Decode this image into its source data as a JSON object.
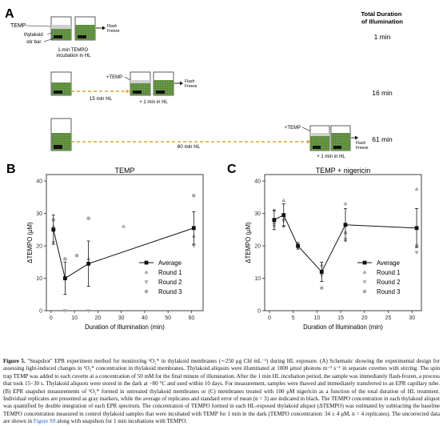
{
  "panel_a": {
    "letter": "A",
    "header_col": "Total Duration\nof Illumination",
    "labels": {
      "temp": "TEMP",
      "thylakoid": "thylakoid",
      "stir_bar": "stir bar",
      "flash_freeze": "Flash\nFreeze"
    },
    "rows": [
      {
        "duration": "1 min",
        "note": "1-min TEMPO\nincubation in HL",
        "hl_label": "",
        "add_label": "",
        "tail_label": ""
      },
      {
        "duration": "16 min",
        "note": "",
        "hl_label": "15 min HL",
        "add_label": "+TEMP",
        "tail_label": "+ 1 min in HL"
      },
      {
        "duration": "61 min",
        "note": "",
        "hl_label": "60 min HL",
        "add_label": "+TEMP",
        "tail_label": "+ 1 min in HL"
      }
    ]
  },
  "chart_data": [
    {
      "type": "scatter",
      "letter": "B",
      "title": "TEMP",
      "xlabel": "Duration of Illumination (min)",
      "ylabel": "ΔTEMPO (μM)",
      "xlim": [
        -2,
        65
      ],
      "ylim": [
        0,
        42
      ],
      "xticks": [
        0,
        10,
        20,
        30,
        40,
        50,
        60
      ],
      "yticks": [
        0,
        10,
        20,
        30,
        40
      ],
      "legend_position": "bottom-right",
      "grid": false,
      "series": [
        {
          "name": "Average",
          "x": [
            1,
            6,
            16,
            61
          ],
          "y": [
            25,
            10,
            14.5,
            25.5
          ],
          "err": [
            4.5,
            5,
            7,
            5
          ]
        },
        {
          "name": "Round 1",
          "x": [
            1,
            6,
            16,
            31,
            61
          ],
          "y": [
            26,
            16,
            16,
            26,
            23
          ]
        },
        {
          "name": "Round 2",
          "x": [
            1,
            6,
            16,
            61
          ],
          "y": [
            21,
            0,
            0,
            20
          ]
        },
        {
          "name": "Round 3",
          "x": [
            1,
            6,
            11,
            16,
            61
          ],
          "y": [
            28,
            16,
            17,
            28.5,
            35.5
          ]
        }
      ]
    },
    {
      "type": "scatter",
      "letter": "C",
      "title": "TEMP + nigericin",
      "xlabel": "Duration of Illumination (min)",
      "ylabel": "ΔTEMPO (μM)",
      "xlim": [
        -1,
        32
      ],
      "ylim": [
        0,
        42
      ],
      "xticks": [
        0,
        5,
        10,
        15,
        20,
        25,
        30
      ],
      "yticks": [
        0,
        10,
        20,
        30,
        40
      ],
      "legend_position": "bottom-right",
      "grid": false,
      "series": [
        {
          "name": "Average",
          "x": [
            1,
            3,
            6,
            11,
            16,
            31
          ],
          "y": [
            28,
            29.5,
            20,
            12,
            26.5,
            25.5
          ],
          "err": [
            3,
            3.5,
            1,
            3,
            5,
            6
          ]
        },
        {
          "name": "Round 1",
          "x": [
            1,
            3,
            6,
            11,
            16,
            31
          ],
          "y": [
            31,
            34,
            20,
            14,
            33,
            37.5
          ]
        },
        {
          "name": "Round 2",
          "x": [
            1,
            3,
            6,
            11,
            16,
            31
          ],
          "y": [
            26,
            26,
            19.5,
            11,
            22,
            18
          ]
        },
        {
          "name": "Round 3",
          "x": [
            1,
            3,
            6,
            11,
            16,
            31
          ],
          "y": [
            27,
            28,
            20,
            7,
            24,
            20
          ]
        }
      ]
    }
  ],
  "caption": {
    "label": "Figure 5.",
    "text": " \"Snapshot\" EPR experiment method for monitoring ¹O₂* in thylakoid membranes (∼250 μg Chl mL⁻¹) during HL exposure. (A) Schematic showing the experimental design for assessing light-induced changes in ¹O₂* concentration in thylakoid membranes. Thylakoid aliquots were illuminated at 1000 μmol photons m⁻² s⁻¹ in separate cuvettes with stirring. The spin trap TEMP was added to each cuvette at a concentration of 50 mM for the final minute of illumination. After the 1 min HL incubation period, the sample was immediately flash-frozen, a process that took 15−30 s. Thylakoid aliquots were stored in the dark at −80 °C and used within 10 days. For measurement, samples were thawed and immediately transferred to an EPR capillary tube. (B) EPR snapshot measurements of ¹O₂* formed in untreated thylakoid membranes or (C) membranes treated with 100 μM nigericin as a function of the total duration of HL treatment. Individual replicates are presented as gray markers, while the average of replicates and standard error of mean (n = 3) are indicated in black. The TEMPO concentration in each thylakoid aliquot was quantified by double integration of each EPR spectrum. The concentration of TEMPO formed in each HL-exposed thylakoid aliquot (ΔTEMPO) was estimated by subtracting the baseline TEMPO concentration measured in control thylakoid samples that were incubated with TEMP for 1 min in the dark (TEMPO concentration: 34 ± 4 μM, n = 4 replicates). The uncorrected data are shown in ",
    "link": "Figure S9",
    "tail": " along with snapshots for 1 min incubations with TEMPO."
  },
  "colors": {
    "thylakoid": "#5c8a3c",
    "thylakoid_dark": "#3f6b2a",
    "dashed_line": "#e6a22d",
    "average": "#111111",
    "replicate": "#a8a8a8",
    "link": "#1f5fbf"
  }
}
